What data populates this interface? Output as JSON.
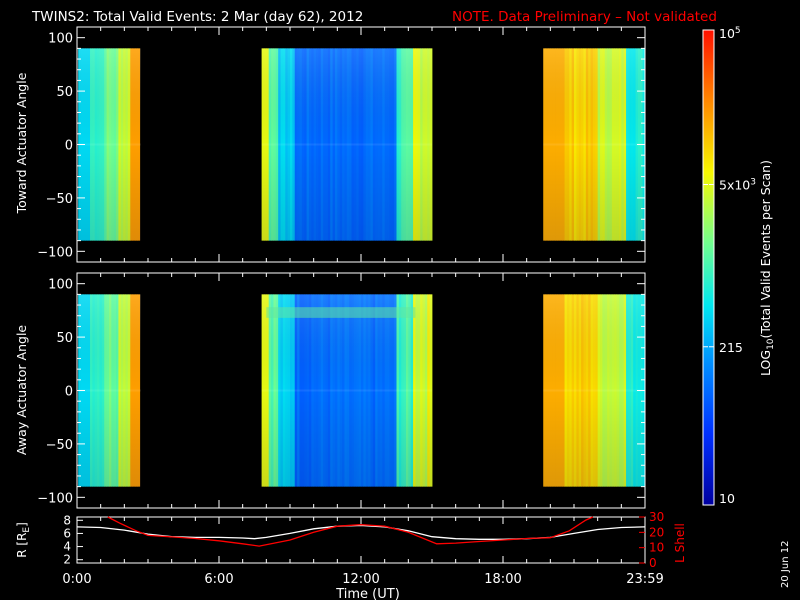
{
  "header": {
    "title": "TWINS2: Total Valid Events:  2 Mar (day  62), 2012",
    "note": "NOTE. Data Preliminary – Not validated",
    "note_color": "#ff0000"
  },
  "footer": {
    "date_stamp": "20 Jun 12"
  },
  "chart_data": [
    {
      "type": "heatmap",
      "id": "toward",
      "ylabel": "Toward Actuator Angle",
      "ylim": [
        -110,
        110
      ],
      "yticks": [
        100,
        50,
        0,
        -50,
        -100
      ],
      "ytick_labels": [
        "100",
        "50",
        "0",
        "−50",
        "−100"
      ],
      "xlim": [
        0,
        24
      ],
      "angle_range": [
        -90,
        90
      ],
      "data_intervals_hours": [
        [
          0.05,
          2.7
        ],
        [
          7.8,
          15.0
        ],
        [
          19.7,
          24.0
        ]
      ],
      "colorscale": "log10 total valid events per scan, 10 to 1e5"
    },
    {
      "type": "heatmap",
      "id": "away",
      "ylabel": "Away Actuator Angle",
      "ylim": [
        -110,
        110
      ],
      "yticks": [
        100,
        50,
        0,
        -50,
        -100
      ],
      "ytick_labels": [
        "100",
        "50",
        "0",
        "−50",
        "−100"
      ],
      "xlim": [
        0,
        24
      ],
      "angle_range": [
        -90,
        90
      ],
      "data_intervals_hours": [
        [
          0.05,
          2.7
        ],
        [
          7.8,
          15.0
        ],
        [
          19.7,
          24.0
        ]
      ],
      "colorscale": "log10 total valid events per scan, 10 to 1e5"
    },
    {
      "type": "line",
      "id": "orbit",
      "xlabel": "Time (UT)",
      "xlim": [
        0,
        24
      ],
      "xticks": [
        0,
        6,
        12,
        18,
        24
      ],
      "xtick_labels": [
        "0:00",
        "6:00",
        "12:00",
        "18:00",
        "23:59"
      ],
      "left_axis": {
        "label": "R [R",
        "label_sub": "E",
        "label_end": "]",
        "ylim": [
          1.5,
          8.5
        ],
        "ticks": [
          2,
          4,
          6,
          8
        ],
        "tick_labels": [
          "2",
          "4",
          "6",
          "8"
        ],
        "color": "#ffffff"
      },
      "right_axis": {
        "label": "L Shell",
        "ylim": [
          0,
          30
        ],
        "ticks": [
          0,
          10,
          20,
          30
        ],
        "tick_labels": [
          "0",
          "10",
          "20",
          "30"
        ],
        "color": "#ff0000"
      },
      "series": [
        {
          "name": "R",
          "axis": "left",
          "color": "#ffffff",
          "x": [
            0,
            1,
            2,
            3,
            4,
            5,
            6,
            7,
            7.5,
            8,
            9,
            10,
            11,
            12,
            13,
            14,
            15,
            16,
            17,
            18,
            19,
            20,
            21,
            22,
            23,
            23.98
          ],
          "y": [
            7.0,
            6.9,
            6.5,
            5.9,
            5.5,
            5.4,
            5.4,
            5.3,
            5.2,
            5.4,
            6.0,
            6.7,
            7.1,
            7.2,
            7.0,
            6.4,
            5.5,
            5.2,
            5.1,
            5.1,
            5.2,
            5.4,
            6.0,
            6.6,
            6.9,
            7.0
          ]
        },
        {
          "name": "L Shell",
          "axis": "right",
          "color": "#ff0000",
          "x": [
            1.3,
            1.8,
            2.5,
            3.0,
            4.0,
            5.0,
            6.0,
            7.0,
            7.7,
            9.0,
            10.0,
            11.0,
            12.0,
            13.0,
            14.0,
            15.2,
            16.0,
            17.0,
            18.0,
            19.0,
            20.0,
            20.8,
            21.5,
            21.8
          ],
          "y": [
            30,
            26,
            21,
            18,
            17,
            16,
            14.5,
            12.5,
            11,
            15,
            20,
            24,
            25,
            24,
            20,
            12.5,
            13,
            14,
            15,
            16,
            16.5,
            21,
            28,
            30
          ]
        }
      ]
    }
  ],
  "colorbar": {
    "label": "LOG",
    "label_sub": "10",
    "label_rest": "(Total Valid Events per Scan)",
    "min": 10,
    "max": 100000,
    "ticks": [
      {
        "value": 10,
        "text": "10"
      },
      {
        "value": 215,
        "text": "215"
      },
      {
        "value": 5000,
        "text": "5x10",
        "sup": "3"
      },
      {
        "value": 100000,
        "text": "10",
        "sup": "5"
      }
    ]
  }
}
